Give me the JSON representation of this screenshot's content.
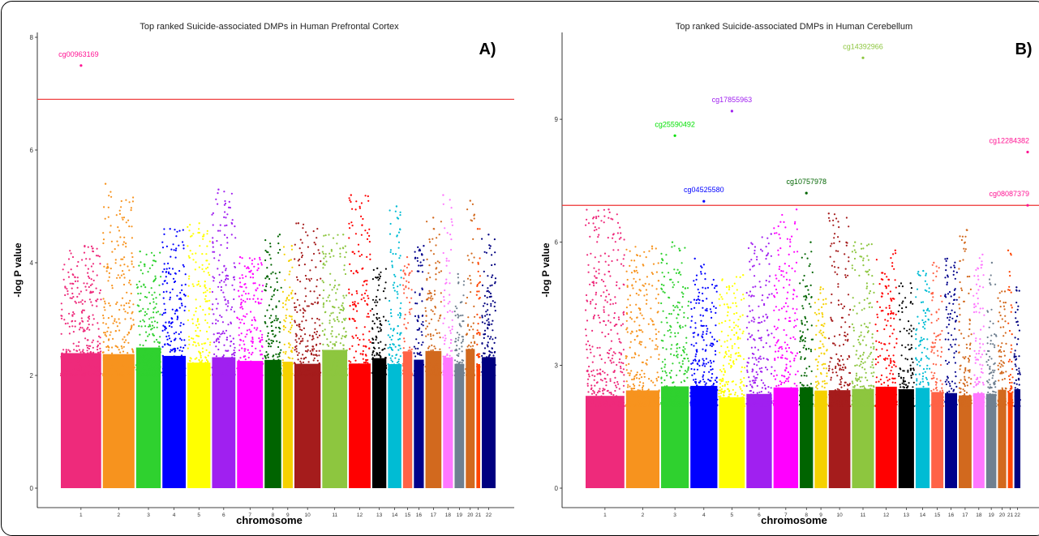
{
  "chart_data": [
    {
      "type": "scatter",
      "title": "Top ranked Suicide-associated DMPs in Human Prefrontal Cortex",
      "panel_label": "A)",
      "xlabel": "chromosome",
      "ylabel": "-log P value",
      "ylim": [
        0,
        8
      ],
      "yticks": [
        0,
        2,
        4,
        6,
        8
      ],
      "threshold": 6.9,
      "categories": [
        "1",
        "2",
        "3",
        "4",
        "5",
        "6",
        "7",
        "8",
        "9",
        "10",
        "11",
        "12",
        "13",
        "14",
        "15",
        "16",
        "17",
        "18",
        "19",
        "20",
        "21",
        "22"
      ],
      "chrom_widths": [
        13.1,
        10.4,
        8.2,
        7.8,
        7.7,
        7.8,
        8.6,
        5.7,
        3.6,
        8.7,
        8.3,
        7.3,
        4.9,
        4.7,
        3.4,
        3.6,
        5.5,
        3.6,
        3.5,
        3.3,
        1.7,
        4.8
      ],
      "chrom_colors": [
        "#ee2a7b",
        "#f7931e",
        "#2fd12f",
        "#0000ff",
        "#ffff00",
        "#a020f0",
        "#ff00ff",
        "#006400",
        "#f5d100",
        "#a51c1c",
        "#8dc63f",
        "#ff0000",
        "#000000",
        "#00bcd4",
        "#ff6347",
        "#00008b",
        "#d2691e",
        "#ff77ff",
        "#708090",
        "#d2691e",
        "#ff4500",
        "#000080"
      ],
      "chrom_max": [
        4.3,
        5.4,
        4.2,
        4.6,
        4.7,
        5.3,
        4.1,
        4.5,
        4.3,
        4.7,
        4.5,
        5.2,
        3.9,
        5.0,
        4.1,
        4.3,
        4.8,
        5.2,
        3.8,
        5.1,
        4.6,
        4.5
      ],
      "labeled_points": [
        {
          "name": "cg00963169",
          "chromosome": "1",
          "y": 7.5,
          "color": "#ff1493"
        }
      ]
    },
    {
      "type": "scatter",
      "title": "Top ranked Suicide-associated DMPs in Human Cerebellum",
      "panel_label": "B)",
      "xlabel": "chromosome",
      "ylabel": "-log P value",
      "ylim": [
        0,
        11
      ],
      "yticks": [
        0,
        3,
        6,
        9
      ],
      "threshold": 6.9,
      "categories": [
        "1",
        "2",
        "3",
        "4",
        "5",
        "6",
        "7",
        "8",
        "9",
        "10",
        "11",
        "12",
        "13",
        "14",
        "15",
        "16",
        "17",
        "18",
        "19",
        "20",
        "21",
        "22"
      ],
      "chrom_widths": [
        10.6,
        9.2,
        7.7,
        7.5,
        7.2,
        7.1,
        6.9,
        3.9,
        3.7,
        6.1,
        6.2,
        6.0,
        4.5,
        4.1,
        3.6,
        3.6,
        3.8,
        3.4,
        3.1,
        2.6,
        1.7,
        2.0
      ],
      "chrom_colors": [
        "#ee2a7b",
        "#f7931e",
        "#2fd12f",
        "#0000ff",
        "#ffff00",
        "#a020f0",
        "#ff00ff",
        "#006400",
        "#f5d100",
        "#a51c1c",
        "#8dc63f",
        "#ff0000",
        "#000000",
        "#00bcd4",
        "#ff6347",
        "#00008b",
        "#d2691e",
        "#ff77ff",
        "#708090",
        "#d2691e",
        "#ff4500",
        "#000080"
      ],
      "chrom_max": [
        6.8,
        5.9,
        6.0,
        5.6,
        5.2,
        6.2,
        6.8,
        6.0,
        4.9,
        6.7,
        6.0,
        5.8,
        5.0,
        5.3,
        5.5,
        5.6,
        6.3,
        5.7,
        5.5,
        4.8,
        5.8,
        4.9
      ],
      "labeled_points": [
        {
          "name": "cg25590492",
          "chromosome": "3",
          "y": 8.6,
          "color": "#00e000"
        },
        {
          "name": "cg04525580",
          "chromosome": "4",
          "y": 7.0,
          "color": "#0000ff"
        },
        {
          "name": "cg17855963",
          "chromosome": "5",
          "y": 9.2,
          "color": "#a020f0"
        },
        {
          "name": "cg10757978",
          "chromosome": "8",
          "y": 7.2,
          "color": "#006400"
        },
        {
          "name": "cg14392966",
          "chromosome": "11",
          "y": 10.5,
          "color": "#8dc63f"
        },
        {
          "name": "cg12284382",
          "chromosome": "22",
          "y": 8.2,
          "color": "#ff1493"
        },
        {
          "name": "cg08087379",
          "chromosome": "22",
          "y": 6.9,
          "color": "#ff1493"
        }
      ]
    }
  ]
}
